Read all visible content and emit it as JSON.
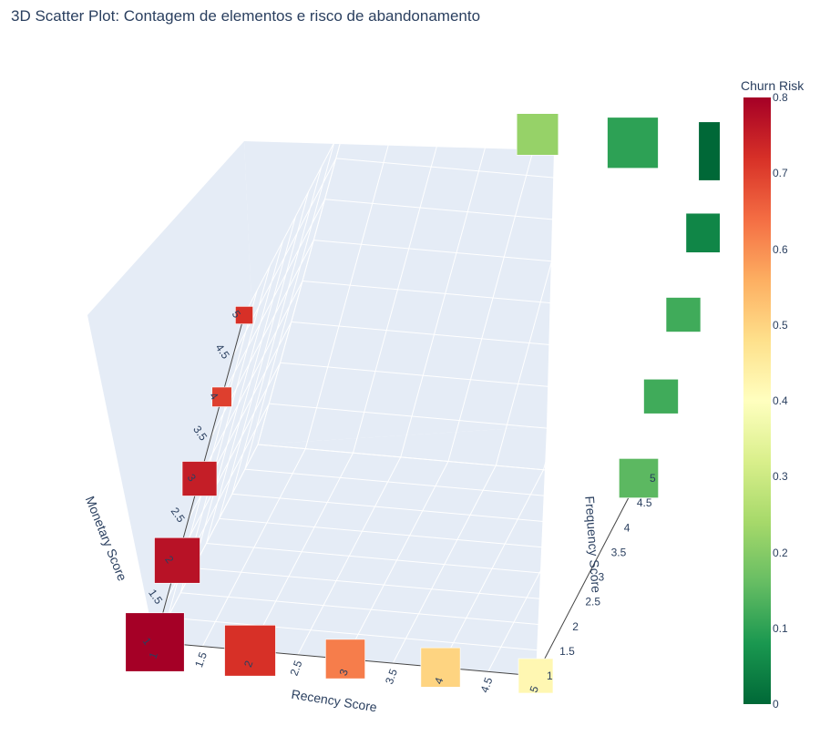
{
  "chart_data": {
    "type": "scatter3d",
    "title": "3D Scatter Plot: Contagem de elementos e risco de abandonamento",
    "x_label": "Recency Score",
    "y_label": "Frequency Score",
    "z_label": "Monetary Score",
    "x_ticks": [
      "1",
      "1.5",
      "2",
      "2.5",
      "3",
      "3.5",
      "4",
      "4.5",
      "5"
    ],
    "y_ticks": [
      "1",
      "1.5",
      "2",
      "2.5",
      "3",
      "3.5",
      "4",
      "4.5",
      "5"
    ],
    "z_ticks": [
      "1",
      "1.5",
      "2",
      "2.5",
      "3",
      "3.5",
      "4",
      "4.5",
      "5"
    ],
    "x_range": [
      1,
      5
    ],
    "y_range": [
      1,
      5
    ],
    "z_range": [
      1,
      5
    ],
    "colorbar": {
      "title": "Churn Risk",
      "ticks": [
        "0",
        "0.1",
        "0.2",
        "0.3",
        "0.4",
        "0.5",
        "0.6",
        "0.7",
        "0.8"
      ],
      "range": [
        0,
        0.8
      ],
      "colorscale": [
        "#006837",
        "#1a9850",
        "#66bd63",
        "#a6d96a",
        "#d9ef8b",
        "#ffffbf",
        "#fee08b",
        "#fdae61",
        "#f46d43",
        "#d73027",
        "#a50026"
      ]
    },
    "marker_symbol": "square",
    "size_meaning": "element count",
    "points_note": "one point per (recency, frequency, monetary) combination; risk falls as recency and frequency rise",
    "points": [
      {
        "recency": 1,
        "frequency": 1,
        "monetary": 1,
        "risk": 0.8,
        "count": 95
      },
      {
        "recency": 1,
        "frequency": 1,
        "monetary": 2,
        "risk": 0.77,
        "count": 55
      },
      {
        "recency": 1,
        "frequency": 1,
        "monetary": 3,
        "risk": 0.75,
        "count": 30
      },
      {
        "recency": 1,
        "frequency": 1,
        "monetary": 4,
        "risk": 0.7,
        "count": 8
      },
      {
        "recency": 1,
        "frequency": 1,
        "monetary": 5,
        "risk": 0.72,
        "count": 6
      },
      {
        "recency": 2,
        "frequency": 1,
        "monetary": 1,
        "risk": 0.72,
        "count": 70
      },
      {
        "recency": 3,
        "frequency": 1,
        "monetary": 1,
        "risk": 0.62,
        "count": 40
      },
      {
        "recency": 4,
        "frequency": 1,
        "monetary": 1,
        "risk": 0.5,
        "count": 40
      },
      {
        "recency": 5,
        "frequency": 1,
        "monetary": 1,
        "risk": 0.42,
        "count": 30
      },
      {
        "recency": 5,
        "frequency": 5,
        "monetary": 5,
        "risk": 0.0,
        "count": 95
      },
      {
        "recency": 4,
        "frequency": 5,
        "monetary": 5,
        "risk": 0.1,
        "count": 70
      },
      {
        "recency": 3,
        "frequency": 5,
        "monetary": 5,
        "risk": 0.22,
        "count": 45
      },
      {
        "recency": 5,
        "frequency": 5,
        "monetary": 4,
        "risk": 0.05,
        "count": 40
      },
      {
        "recency": 5,
        "frequency": 5,
        "monetary": 3,
        "risk": 0.12,
        "count": 30
      },
      {
        "recency": 5,
        "frequency": 5,
        "monetary": 2,
        "risk": 0.12,
        "count": 30
      },
      {
        "recency": 5,
        "frequency": 5,
        "monetary": 1,
        "risk": 0.15,
        "count": 40
      }
    ]
  }
}
